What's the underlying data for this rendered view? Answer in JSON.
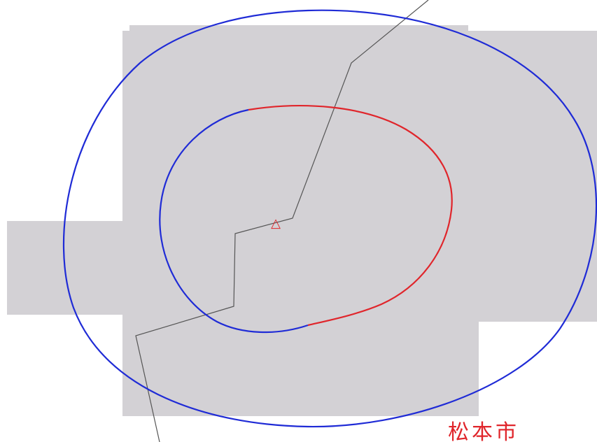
{
  "map": {
    "place_label": "松本市",
    "marker_glyph": "△",
    "colors": {
      "background": "#ffffff",
      "shaded_area": "#d3d1d5",
      "outer_contour": "#1f2bd6",
      "inner_contour_blue": "#1f2bd6",
      "inner_contour_red": "#e0252b",
      "boundary_line": "#555555",
      "label": "#e0252b"
    }
  }
}
